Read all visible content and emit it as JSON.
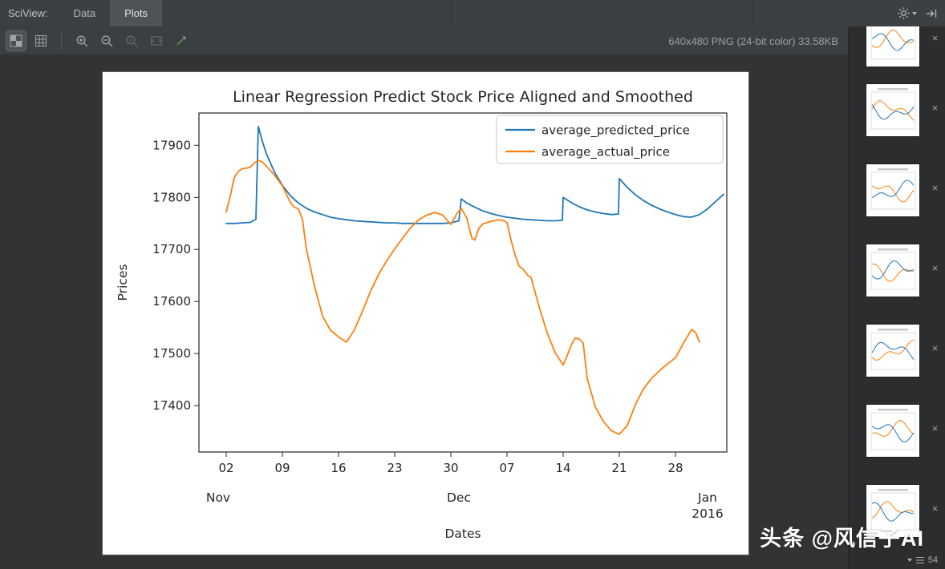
{
  "header": {
    "sciview_label": "SciView:",
    "tabs": [
      {
        "label": "Data",
        "active": false
      },
      {
        "label": "Plots",
        "active": true
      }
    ]
  },
  "toolbar": {
    "icons": [
      "checkerboard-icon",
      "grid-icon",
      "zoom-in-icon",
      "zoom-out-icon",
      "zoom-actual-icon",
      "fit-zoom-icon",
      "color-picker-icon"
    ],
    "status_text": "640x480 PNG (24-bit color) 33.58KB"
  },
  "sidebar": {
    "thumbnails": [
      {
        "id": 1
      },
      {
        "id": 2
      },
      {
        "id": 3
      },
      {
        "id": 4
      },
      {
        "id": 5
      },
      {
        "id": 6
      },
      {
        "id": 7
      }
    ],
    "close_glyph": "×",
    "counter_label": "54"
  },
  "watermark": "头条 @风信子AI",
  "chart_data": {
    "type": "line",
    "title": "Linear Regression Predict Stock Price Aligned and Smoothed",
    "xlabel": "Dates",
    "ylabel": "Prices",
    "x_unit": "days since Nov 1, 2015",
    "xlim": [
      -1.4,
      64.4
    ],
    "ylim": [
      17311,
      17962
    ],
    "yticks": [
      17400,
      17500,
      17600,
      17700,
      17800,
      17900
    ],
    "xticks": {
      "days": [
        2,
        9,
        16,
        23,
        30,
        37,
        44,
        51,
        58
      ],
      "labels": [
        "02",
        "09",
        "16",
        "23",
        "30",
        "07",
        "14",
        "21",
        "28"
      ]
    },
    "month_ticks": [
      {
        "day": 1,
        "label": "Nov"
      },
      {
        "day": 31,
        "label": "Dec"
      },
      {
        "day": 62,
        "label": "Jan",
        "sublabel": "2016"
      }
    ],
    "legend": {
      "position": "upper right",
      "entries": [
        "average_predicted_price",
        "average_actual_price"
      ]
    },
    "series": [
      {
        "name": "average_predicted_price",
        "color": "#1f77b4",
        "points": [
          [
            2,
            17750
          ],
          [
            3,
            17750
          ],
          [
            4,
            17751
          ],
          [
            5,
            17752
          ],
          [
            5.7,
            17758
          ],
          [
            6,
            17936
          ],
          [
            6.5,
            17908
          ],
          [
            7,
            17884
          ],
          [
            8,
            17849
          ],
          [
            9,
            17823
          ],
          [
            10,
            17803
          ],
          [
            11,
            17789
          ],
          [
            12,
            17779
          ],
          [
            13,
            17772
          ],
          [
            14,
            17767
          ],
          [
            15,
            17762
          ],
          [
            16,
            17759
          ],
          [
            17,
            17757
          ],
          [
            18,
            17755
          ],
          [
            19,
            17754
          ],
          [
            20,
            17753
          ],
          [
            21,
            17752
          ],
          [
            22,
            17751
          ],
          [
            23,
            17751
          ],
          [
            24,
            17750
          ],
          [
            25,
            17750
          ],
          [
            26,
            17750
          ],
          [
            27,
            17750
          ],
          [
            28,
            17750
          ],
          [
            29,
            17750
          ],
          [
            30,
            17751
          ],
          [
            31,
            17755
          ],
          [
            31.3,
            17797
          ],
          [
            32,
            17789
          ],
          [
            33,
            17781
          ],
          [
            34,
            17774
          ],
          [
            35,
            17769
          ],
          [
            36,
            17765
          ],
          [
            37,
            17762
          ],
          [
            38,
            17760
          ],
          [
            39,
            17758
          ],
          [
            40,
            17757
          ],
          [
            41,
            17756
          ],
          [
            42,
            17755
          ],
          [
            43,
            17755
          ],
          [
            43.9,
            17756
          ],
          [
            44,
            17800
          ],
          [
            45,
            17790
          ],
          [
            46,
            17782
          ],
          [
            47,
            17776
          ],
          [
            48,
            17772
          ],
          [
            49,
            17769
          ],
          [
            50,
            17767
          ],
          [
            50.9,
            17768
          ],
          [
            51,
            17836
          ],
          [
            52,
            17819
          ],
          [
            53,
            17805
          ],
          [
            54,
            17794
          ],
          [
            55,
            17785
          ],
          [
            56,
            17778
          ],
          [
            57,
            17772
          ],
          [
            58,
            17767
          ],
          [
            59,
            17763
          ],
          [
            60,
            17762
          ],
          [
            61,
            17767
          ],
          [
            62,
            17778
          ],
          [
            63,
            17792
          ],
          [
            64,
            17806
          ]
        ]
      },
      {
        "name": "average_actual_price",
        "color": "#ff7f0e",
        "points": [
          [
            2,
            17772
          ],
          [
            2.5,
            17802
          ],
          [
            3,
            17838
          ],
          [
            3.5,
            17850
          ],
          [
            4,
            17855
          ],
          [
            4.5,
            17856
          ],
          [
            5,
            17858
          ],
          [
            5.5,
            17866
          ],
          [
            6,
            17871
          ],
          [
            6.5,
            17868
          ],
          [
            7,
            17860
          ],
          [
            8,
            17843
          ],
          [
            9,
            17822
          ],
          [
            10,
            17790
          ],
          [
            10.5,
            17781
          ],
          [
            11,
            17778
          ],
          [
            11.5,
            17758
          ],
          [
            12,
            17700
          ],
          [
            13,
            17630
          ],
          [
            14,
            17572
          ],
          [
            15,
            17545
          ],
          [
            16,
            17532
          ],
          [
            17,
            17522
          ],
          [
            18,
            17546
          ],
          [
            19,
            17582
          ],
          [
            20,
            17620
          ],
          [
            21,
            17652
          ],
          [
            22,
            17678
          ],
          [
            23,
            17701
          ],
          [
            24,
            17722
          ],
          [
            25,
            17742
          ],
          [
            26,
            17757
          ],
          [
            27,
            17766
          ],
          [
            28,
            17771
          ],
          [
            29,
            17766
          ],
          [
            30,
            17748
          ],
          [
            30.8,
            17770
          ],
          [
            31.3,
            17779
          ],
          [
            32,
            17760
          ],
          [
            32.6,
            17722
          ],
          [
            33,
            17718
          ],
          [
            33.5,
            17741
          ],
          [
            34,
            17749
          ],
          [
            35,
            17754
          ],
          [
            36,
            17757
          ],
          [
            36.6,
            17755
          ],
          [
            37,
            17752
          ],
          [
            37.5,
            17718
          ],
          [
            38,
            17690
          ],
          [
            38.5,
            17668
          ],
          [
            39,
            17662
          ],
          [
            39.6,
            17650
          ],
          [
            40,
            17646
          ],
          [
            40.5,
            17618
          ],
          [
            41,
            17590
          ],
          [
            42,
            17540
          ],
          [
            43,
            17502
          ],
          [
            44,
            17478
          ],
          [
            44.5,
            17496
          ],
          [
            45,
            17516
          ],
          [
            45.5,
            17530
          ],
          [
            46,
            17528
          ],
          [
            46.5,
            17520
          ],
          [
            47,
            17452
          ],
          [
            48,
            17398
          ],
          [
            49,
            17370
          ],
          [
            50,
            17352
          ],
          [
            51,
            17345
          ],
          [
            52,
            17362
          ],
          [
            53,
            17402
          ],
          [
            54,
            17432
          ],
          [
            55,
            17452
          ],
          [
            56,
            17467
          ],
          [
            57,
            17480
          ],
          [
            58,
            17492
          ],
          [
            59,
            17520
          ],
          [
            60,
            17546
          ],
          [
            60.5,
            17541
          ],
          [
            61,
            17522
          ]
        ]
      }
    ]
  }
}
